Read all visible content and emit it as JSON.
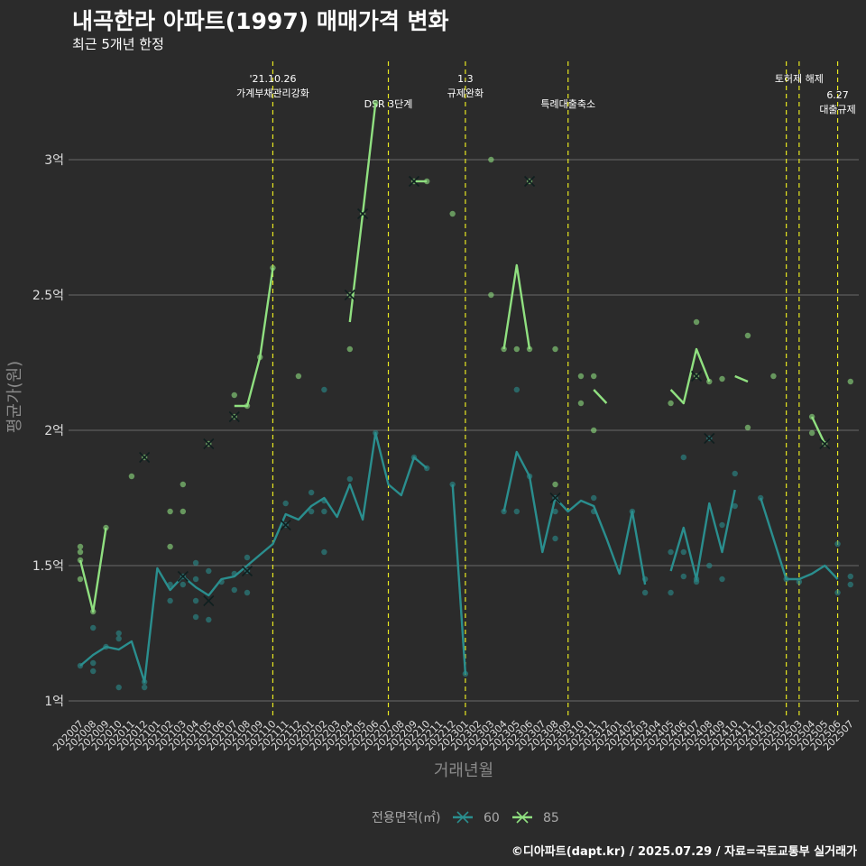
{
  "title": "내곡한라 아파트(1997) 매매가격 변화",
  "subtitle": "최근 5개년 한정",
  "caption": "©디아파트(dapt.kr) / 2025.07.29 / 자료=국토교통부 실거래가",
  "chart_data": {
    "type": "line",
    "xlabel": "거래년월",
    "ylabel": "평균가(원)",
    "y_unit": "억",
    "ylim": [
      0.9,
      3.35
    ],
    "y_ticks": [
      {
        "value": 1.0,
        "label": "1억"
      },
      {
        "value": 1.5,
        "label": "1.5억"
      },
      {
        "value": 2.0,
        "label": "2억"
      },
      {
        "value": 2.5,
        "label": "2.5억"
      },
      {
        "value": 3.0,
        "label": "3억"
      }
    ],
    "grid": true,
    "legend_title": "전용면적(㎡)",
    "legend_position": "bottom",
    "categories": [
      "202007",
      "202008",
      "202009",
      "202010",
      "202011",
      "202012",
      "202101",
      "202102",
      "202103",
      "202104",
      "202105",
      "202106",
      "202107",
      "202108",
      "202109",
      "202110",
      "202111",
      "202112",
      "202201",
      "202202",
      "202203",
      "202204",
      "202205",
      "202206",
      "202207",
      "202208",
      "202209",
      "202210",
      "202211",
      "202212",
      "202301",
      "202302",
      "202303",
      "202304",
      "202305",
      "202306",
      "202307",
      "202308",
      "202309",
      "202310",
      "202311",
      "202312",
      "202401",
      "202402",
      "202403",
      "202404",
      "202405",
      "202406",
      "202407",
      "202408",
      "202409",
      "202410",
      "202411",
      "202412",
      "202501",
      "202502",
      "202503",
      "202504",
      "202505",
      "202506",
      "202507"
    ],
    "annotations": [
      {
        "category": "202110",
        "lines": [
          "'21.10.26",
          "가계부채관리강화"
        ],
        "tier": 1
      },
      {
        "category": "202207",
        "lines": [
          "DSR 3단계"
        ],
        "tier": 2
      },
      {
        "category": "202301",
        "lines": [
          "1.3",
          "규제완화"
        ],
        "tier": 1
      },
      {
        "category": "202309",
        "lines": [
          "특례대출축소"
        ],
        "tier": 2
      },
      {
        "category": "202502",
        "lines": [],
        "tier": 1
      },
      {
        "category": "202503",
        "lines": [
          "토허제 해제"
        ],
        "tier": 1
      },
      {
        "category": "202506",
        "lines": [
          "6.27",
          "대출규제"
        ],
        "tier": 3
      }
    ],
    "series": [
      {
        "name": "60",
        "color": "#2a8e8e",
        "values": [
          1.13,
          1.17,
          1.2,
          1.19,
          1.22,
          1.07,
          1.49,
          1.41,
          1.46,
          1.42,
          1.39,
          1.45,
          1.46,
          1.5,
          1.54,
          1.58,
          1.69,
          1.67,
          1.72,
          1.75,
          1.68,
          1.8,
          1.67,
          1.99,
          1.8,
          1.76,
          1.9,
          1.86,
          null,
          1.8,
          1.1,
          null,
          null,
          1.7,
          1.92,
          1.83,
          1.55,
          1.75,
          1.7,
          1.74,
          1.72,
          1.6,
          1.47,
          1.7,
          1.43,
          null,
          1.48,
          1.64,
          1.45,
          1.73,
          1.55,
          1.78,
          null,
          1.75,
          1.6,
          1.45,
          1.45,
          1.47,
          1.5,
          1.45,
          null
        ],
        "points": [
          [
            0,
            1.13
          ],
          [
            1,
            1.11
          ],
          [
            1,
            1.14
          ],
          [
            1,
            1.27
          ],
          [
            2,
            1.2
          ],
          [
            3,
            1.25
          ],
          [
            3,
            1.23
          ],
          [
            3,
            1.05
          ],
          [
            5,
            1.05
          ],
          [
            5,
            1.07
          ],
          [
            7,
            1.37
          ],
          [
            7,
            1.43
          ],
          [
            8,
            1.43
          ],
          [
            8,
            1.46
          ],
          [
            9,
            1.51
          ],
          [
            9,
            1.45
          ],
          [
            9,
            1.31
          ],
          [
            9,
            1.37
          ],
          [
            10,
            1.48
          ],
          [
            10,
            1.3
          ],
          [
            11,
            1.44
          ],
          [
            12,
            1.41
          ],
          [
            12,
            1.47
          ],
          [
            13,
            1.53
          ],
          [
            13,
            1.4
          ],
          [
            13,
            1.48
          ],
          [
            16,
            1.73
          ],
          [
            16,
            1.65
          ],
          [
            18,
            1.77
          ],
          [
            18,
            1.7
          ],
          [
            19,
            2.15
          ],
          [
            19,
            1.55
          ],
          [
            19,
            1.7
          ],
          [
            19,
            1.74
          ],
          [
            21,
            1.82
          ],
          [
            23,
            1.99
          ],
          [
            26,
            1.9
          ],
          [
            27,
            1.86
          ],
          [
            29,
            1.8
          ],
          [
            30,
            1.1
          ],
          [
            33,
            1.7
          ],
          [
            34,
            2.15
          ],
          [
            34,
            1.7
          ],
          [
            35,
            1.83
          ],
          [
            37,
            1.6
          ],
          [
            37,
            1.7
          ],
          [
            37,
            1.75
          ],
          [
            40,
            1.75
          ],
          [
            40,
            1.7
          ],
          [
            43,
            1.7
          ],
          [
            44,
            1.45
          ],
          [
            44,
            1.4
          ],
          [
            46,
            1.55
          ],
          [
            46,
            1.4
          ],
          [
            47,
            1.9
          ],
          [
            47,
            1.55
          ],
          [
            47,
            1.46
          ],
          [
            48,
            1.44
          ],
          [
            48,
            1.45
          ],
          [
            49,
            1.5
          ],
          [
            49,
            1.97
          ],
          [
            50,
            1.45
          ],
          [
            50,
            1.65
          ],
          [
            51,
            1.84
          ],
          [
            51,
            1.72
          ],
          [
            53,
            1.75
          ],
          [
            55,
            1.45
          ],
          [
            56,
            1.44
          ],
          [
            59,
            1.58
          ],
          [
            59,
            1.4
          ],
          [
            60,
            1.43
          ],
          [
            60,
            1.46
          ]
        ],
        "crosses": [
          [
            8,
            1.46
          ],
          [
            10,
            1.37
          ],
          [
            13,
            1.48
          ],
          [
            16,
            1.65
          ],
          [
            37,
            1.75
          ],
          [
            49,
            1.97
          ]
        ]
      },
      {
        "name": "85",
        "color": "#90e080",
        "values": [
          1.52,
          1.33,
          1.64,
          null,
          1.83,
          null,
          null,
          1.65,
          null,
          null,
          1.95,
          null,
          2.09,
          2.09,
          2.27,
          2.6,
          null,
          2.2,
          null,
          null,
          null,
          2.4,
          2.8,
          3.21,
          null,
          null,
          2.92,
          2.92,
          null,
          2.8,
          null,
          2.75,
          null,
          2.3,
          2.61,
          2.3,
          null,
          2.05,
          null,
          null,
          2.15,
          2.1,
          null,
          null,
          null,
          null,
          2.15,
          2.1,
          2.3,
          2.18,
          null,
          2.2,
          2.18,
          null,
          2.2,
          null,
          null,
          2.05,
          1.95,
          null,
          2.18
        ],
        "points": [
          [
            0,
            1.57
          ],
          [
            0,
            1.55
          ],
          [
            0,
            1.52
          ],
          [
            0,
            1.45
          ],
          [
            1,
            1.33
          ],
          [
            2,
            1.64
          ],
          [
            4,
            1.83
          ],
          [
            5,
            1.9
          ],
          [
            7,
            1.57
          ],
          [
            7,
            1.7
          ],
          [
            8,
            1.8
          ],
          [
            8,
            1.7
          ],
          [
            10,
            1.95
          ],
          [
            12,
            2.13
          ],
          [
            12,
            2.05
          ],
          [
            13,
            2.09
          ],
          [
            14,
            2.27
          ],
          [
            15,
            2.6
          ],
          [
            17,
            2.2
          ],
          [
            21,
            2.3
          ],
          [
            21,
            2.5
          ],
          [
            22,
            2.8
          ],
          [
            23,
            3.21
          ],
          [
            26,
            2.92
          ],
          [
            27,
            2.92
          ],
          [
            29,
            2.8
          ],
          [
            32,
            3.0
          ],
          [
            32,
            2.5
          ],
          [
            33,
            2.3
          ],
          [
            34,
            2.3
          ],
          [
            35,
            2.3
          ],
          [
            35,
            2.92
          ],
          [
            37,
            2.3
          ],
          [
            37,
            1.8
          ],
          [
            39,
            2.2
          ],
          [
            39,
            2.1
          ],
          [
            40,
            2.2
          ],
          [
            40,
            2.0
          ],
          [
            46,
            2.1
          ],
          [
            48,
            2.4
          ],
          [
            48,
            2.2
          ],
          [
            49,
            2.18
          ],
          [
            50,
            2.19
          ],
          [
            52,
            2.35
          ],
          [
            52,
            2.01
          ],
          [
            54,
            2.2
          ],
          [
            57,
            2.05
          ],
          [
            57,
            1.99
          ],
          [
            58,
            1.95
          ],
          [
            60,
            2.18
          ]
        ],
        "crosses": [
          [
            5,
            1.9
          ],
          [
            10,
            1.95
          ],
          [
            12,
            2.05
          ],
          [
            21,
            2.5
          ],
          [
            22,
            2.8
          ],
          [
            26,
            2.92
          ],
          [
            35,
            2.92
          ],
          [
            48,
            2.2
          ],
          [
            58,
            1.95
          ]
        ]
      }
    ]
  }
}
